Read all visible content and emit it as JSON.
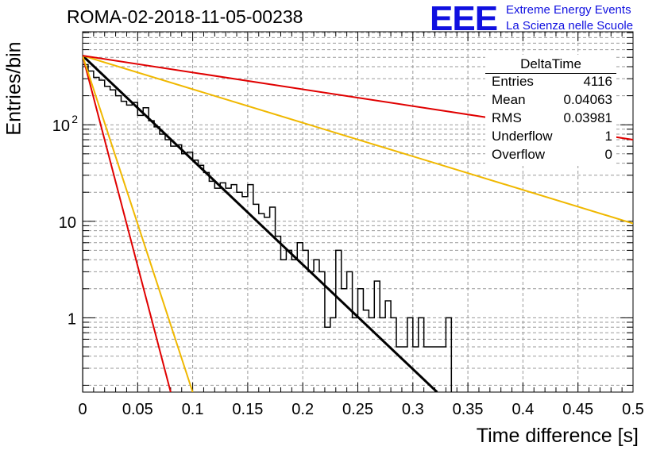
{
  "header": {
    "title": "ROMA-02-2018-11-05-00238",
    "logo_text": "EEE",
    "tagline1": "Extreme Energy Events",
    "tagline2": "La Scienza nelle Scuole"
  },
  "stats": {
    "title": "DeltaTime",
    "rows": [
      {
        "key": "Entries",
        "value": "4116"
      },
      {
        "key": "Mean",
        "value": "0.04063"
      },
      {
        "key": "RMS",
        "value": "0.03981"
      },
      {
        "key": "Underflow",
        "value": "1"
      },
      {
        "key": "Overflow",
        "value": "0"
      }
    ]
  },
  "colors": {
    "histogram": "#000000",
    "fit": "#000000",
    "red": "#e00000",
    "yellow": "#f0b800",
    "grid": "#9a9a9a"
  },
  "chart_data": {
    "type": "line",
    "xlabel": "Time difference [s]",
    "ylabel": "Entries/bin",
    "xlim": [
      0,
      0.5
    ],
    "ylim": [
      0.17,
      920
    ],
    "ylog": true,
    "grid": true,
    "x_ticks": [
      "0",
      "0.05",
      "0.1",
      "0.15",
      "0.2",
      "0.25",
      "0.3",
      "0.35",
      "0.4",
      "0.45",
      "0.5"
    ],
    "y_ticks": [
      "1",
      "10",
      "10^2"
    ],
    "histogram": {
      "bin_width": 0.005,
      "counts": [
        420,
        360,
        310,
        290,
        250,
        230,
        200,
        175,
        160,
        170,
        125,
        150,
        110,
        95,
        80,
        70,
        60,
        62,
        50,
        52,
        43,
        38,
        32,
        26,
        22,
        25,
        22,
        24,
        20,
        18,
        24,
        15,
        12,
        11,
        14,
        7,
        4,
        5,
        4,
        6,
        5,
        3,
        4,
        3,
        0.8,
        1,
        5,
        2,
        3,
        1,
        2,
        1.2,
        1,
        2.4,
        1,
        1.5,
        1,
        0.5,
        0.5,
        1,
        0.5,
        1,
        0.5,
        0.5,
        0.5,
        0.5,
        1
      ]
    },
    "fits": [
      {
        "color": "black",
        "x": [
          0,
          0.322
        ],
        "y": [
          520,
          0.17
        ]
      },
      {
        "color": "red",
        "x": [
          0,
          0.08
        ],
        "y": [
          520,
          0.17
        ]
      },
      {
        "color": "yellow",
        "x": [
          0,
          0.1
        ],
        "y": [
          520,
          0.17
        ]
      },
      {
        "color": "yellow",
        "x": [
          0,
          0.5
        ],
        "y": [
          520,
          9.5
        ]
      },
      {
        "color": "red",
        "x": [
          0,
          0.5
        ],
        "y": [
          520,
          70
        ]
      }
    ]
  }
}
